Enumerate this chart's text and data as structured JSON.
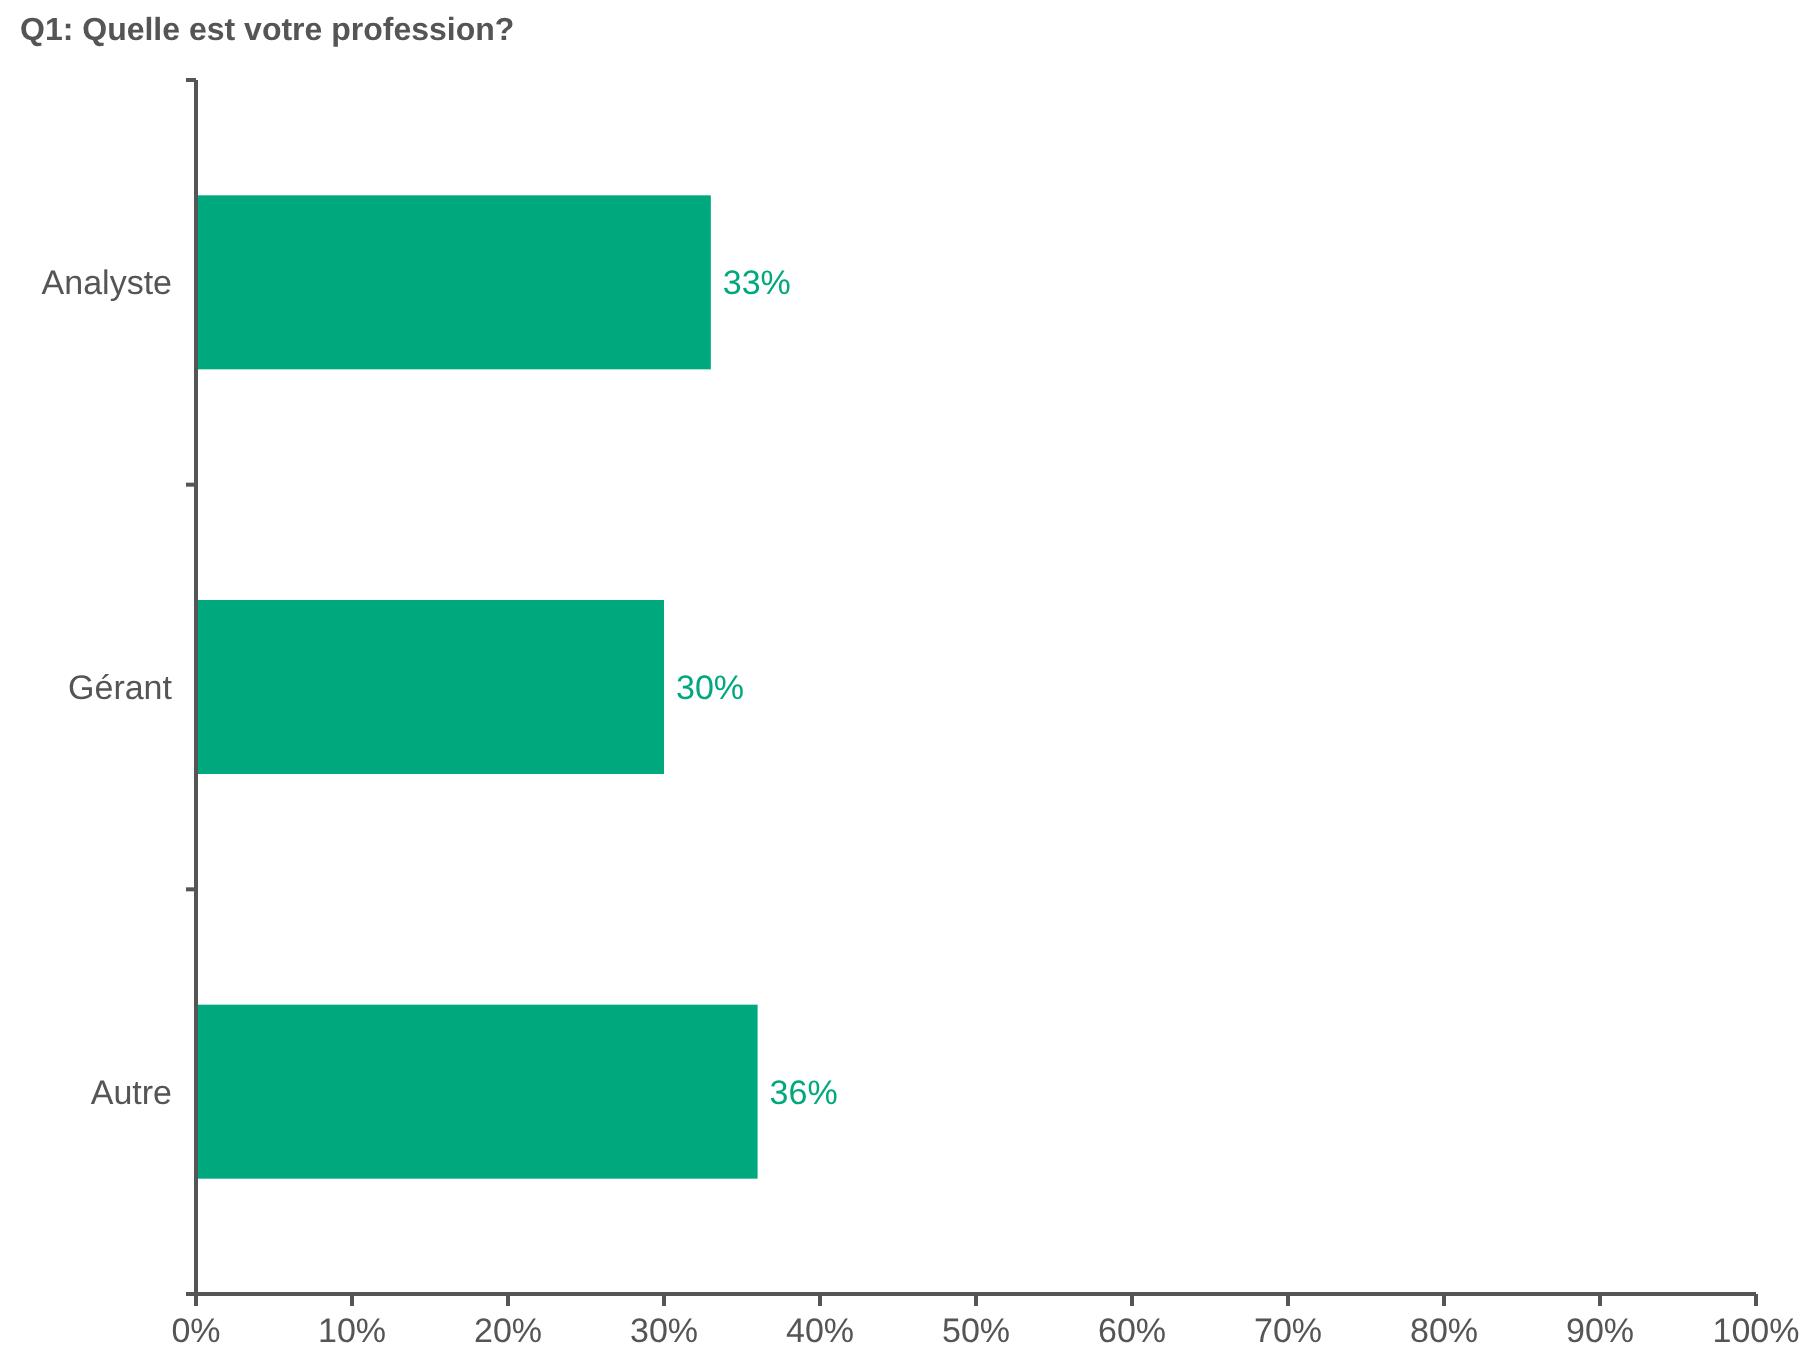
{
  "chart_data": {
    "type": "bar",
    "orientation": "horizontal",
    "title": "Q1: Quelle est votre profession?",
    "categories": [
      "Analyste",
      "Gérant",
      "Autre"
    ],
    "values": [
      33,
      30,
      36
    ],
    "color": "#00a87e",
    "value_labels": [
      "33%",
      "30%",
      "36%"
    ],
    "xlim": [
      0,
      100
    ],
    "xticks": [
      {
        "value": 0,
        "label": "0%"
      },
      {
        "value": 10,
        "label": "10%"
      },
      {
        "value": 20,
        "label": "20%"
      },
      {
        "value": 30,
        "label": "30%"
      },
      {
        "value": 40,
        "label": "40%"
      },
      {
        "value": 50,
        "label": "50%"
      },
      {
        "value": 60,
        "label": "60%"
      },
      {
        "value": 70,
        "label": "70%"
      },
      {
        "value": 80,
        "label": "80%"
      },
      {
        "value": 90,
        "label": "90%"
      },
      {
        "value": 100,
        "label": "100%"
      }
    ],
    "grid": false
  }
}
